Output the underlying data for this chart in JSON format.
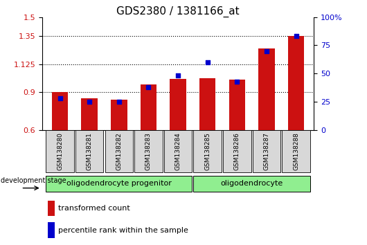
{
  "title": "GDS2380 / 1381166_at",
  "samples": [
    "GSM138280",
    "GSM138281",
    "GSM138282",
    "GSM138283",
    "GSM138284",
    "GSM138285",
    "GSM138286",
    "GSM138287",
    "GSM138288"
  ],
  "bar_values": [
    0.9,
    0.85,
    0.84,
    0.965,
    1.005,
    1.01,
    1.0,
    1.25,
    1.35
  ],
  "dot_values": [
    28,
    25,
    25,
    38,
    48,
    60,
    43,
    70,
    83
  ],
  "ylim_left": [
    0.6,
    1.5
  ],
  "ylim_right": [
    0,
    100
  ],
  "yticks_left": [
    0.6,
    0.9,
    1.125,
    1.35,
    1.5
  ],
  "ytick_labels_left": [
    "0.6",
    "0.9",
    "1.125",
    "1.35",
    "1.5"
  ],
  "yticks_right": [
    0,
    25,
    50,
    75,
    100
  ],
  "ytick_labels_right": [
    "0",
    "25",
    "50",
    "75",
    "100%"
  ],
  "hlines": [
    0.9,
    1.125,
    1.35
  ],
  "bar_color": "#cc1111",
  "dot_color": "#0000cc",
  "bar_width": 0.55,
  "group1_label": "oligodendrocyte progenitor",
  "group2_label": "oligodendrocyte",
  "group1_indices": [
    0,
    1,
    2,
    3,
    4
  ],
  "group2_indices": [
    5,
    6,
    7,
    8
  ],
  "stage_label": "development stage",
  "legend_bar_label": "transformed count",
  "legend_dot_label": "percentile rank within the sample",
  "title_fontsize": 11,
  "tick_label_fontsize": 8,
  "bar_bottom": 0.6
}
